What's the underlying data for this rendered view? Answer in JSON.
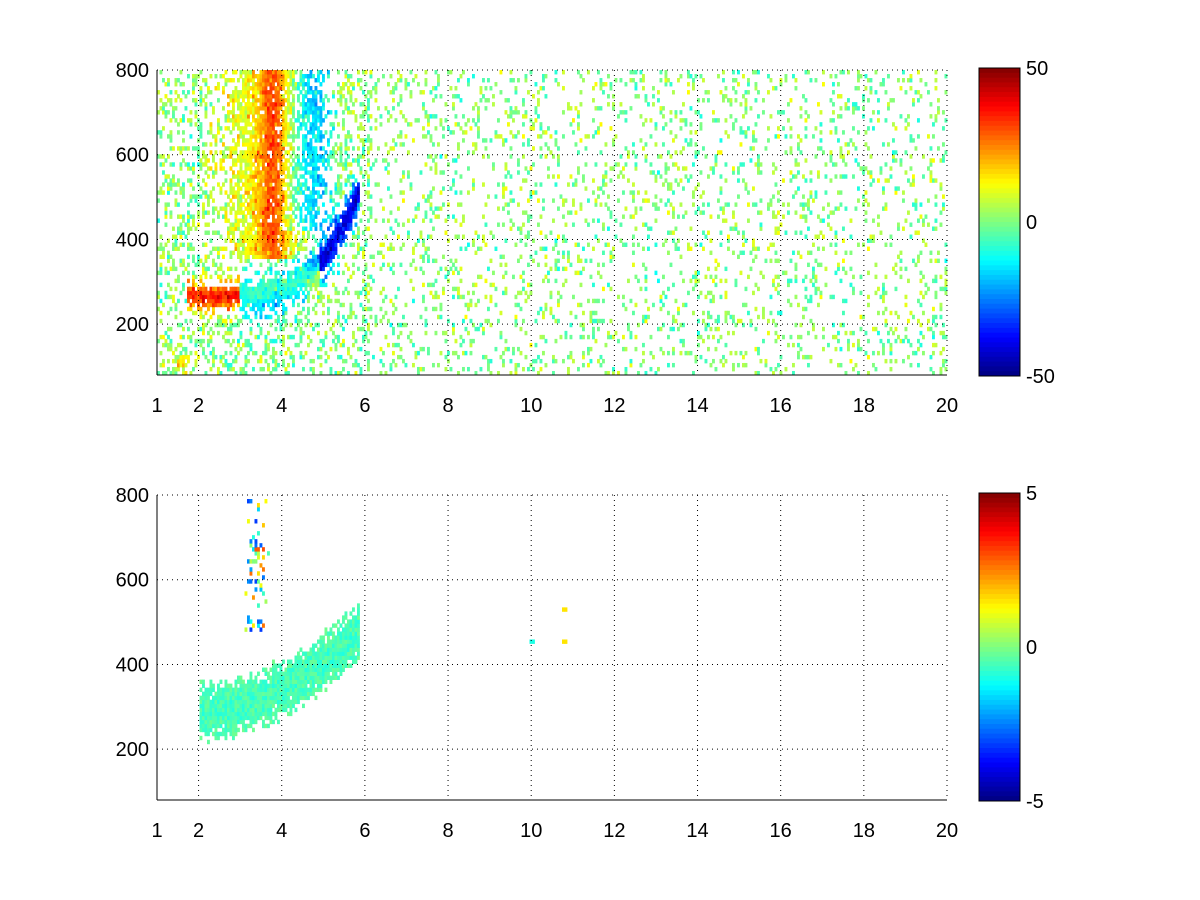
{
  "figure": {
    "background": "#ffffff"
  },
  "chart_data": [
    {
      "type": "heatmap",
      "title": "",
      "xlabel": "",
      "ylabel": "",
      "xlim": [
        1,
        20
      ],
      "ylim": [
        80,
        800
      ],
      "xticks": [
        1,
        2,
        4,
        6,
        8,
        10,
        12,
        14,
        16,
        18,
        20
      ],
      "xtick_labels": [
        "1",
        "2",
        "4",
        "6",
        "8",
        "10",
        "12",
        "14",
        "16",
        "18",
        "20"
      ],
      "yticks": [
        200,
        400,
        600,
        800
      ],
      "ytick_labels": [
        "200",
        "400",
        "600",
        "800"
      ],
      "grid": true,
      "colormap": "jet",
      "colorbar": {
        "range": [
          -50,
          50
        ],
        "ticks": [
          50,
          0,
          -50
        ],
        "tick_labels": [
          "50",
          "0",
          "-50"
        ]
      },
      "features": [
        {
          "desc": "positive arc",
          "x": [
            1.8,
            5.0
          ],
          "y": [
            240,
            300
          ],
          "value": 35
        },
        {
          "desc": "negative arc",
          "x": [
            3.0,
            5.8
          ],
          "y": [
            260,
            560
          ],
          "value": -40
        },
        {
          "desc": "positive patch",
          "x": [
            2.2,
            4.8
          ],
          "y": [
            380,
            800
          ],
          "value": 15
        },
        {
          "desc": "sparse scatter",
          "x": [
            6.0,
            20.0
          ],
          "y": [
            80,
            800
          ],
          "value": 0
        }
      ]
    },
    {
      "type": "heatmap",
      "title": "",
      "xlabel": "",
      "ylabel": "",
      "xlim": [
        1,
        20
      ],
      "ylim": [
        80,
        800
      ],
      "xticks": [
        1,
        2,
        4,
        6,
        8,
        10,
        12,
        14,
        16,
        18,
        20
      ],
      "xtick_labels": [
        "1",
        "2",
        "4",
        "6",
        "8",
        "10",
        "12",
        "14",
        "16",
        "18",
        "20"
      ],
      "yticks": [
        200,
        400,
        600,
        800
      ],
      "ytick_labels": [
        "200",
        "400",
        "600",
        "800"
      ],
      "grid": true,
      "colormap": "jet",
      "colorbar": {
        "range": [
          -5,
          5
        ],
        "ticks": [
          5,
          0,
          -5
        ],
        "tick_labels": [
          "5",
          "0",
          "-5"
        ]
      },
      "features": [
        {
          "desc": "lower band",
          "x": [
            2.0,
            5.8
          ],
          "y": [
            190,
            460
          ],
          "value": -0.5
        },
        {
          "desc": "upper mixed region",
          "x": [
            2.0,
            4.8
          ],
          "y": [
            460,
            780
          ],
          "value": 0
        },
        {
          "desc": "isolated points",
          "x": [
            10.0,
            10.8
          ],
          "y": [
            440,
            540
          ],
          "value": 1
        }
      ]
    }
  ]
}
